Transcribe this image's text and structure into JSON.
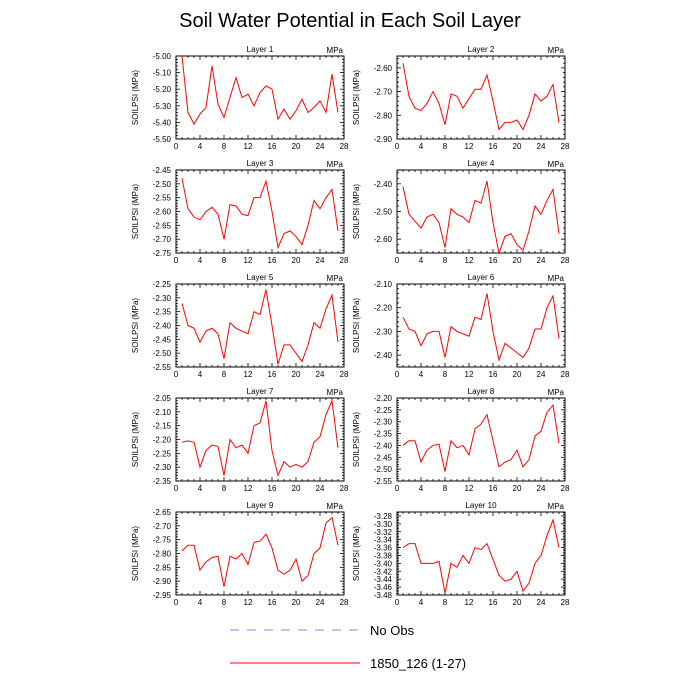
{
  "title": "Soil Water Potential in Each Soil Layer",
  "legend": [
    {
      "label": "No Obs",
      "color": "#8a8ad8",
      "style": "dashed"
    },
    {
      "label": "1850_126 (1-27)",
      "color": "#ff0000",
      "style": "solid"
    }
  ],
  "chart_data": [
    {
      "type": "line",
      "title": "Layer 1",
      "units": "MPa",
      "ylabel": "SOILPSI  (MPa)",
      "xlim": [
        0,
        28
      ],
      "xticks": [
        0,
        4,
        8,
        12,
        16,
        20,
        24,
        28
      ],
      "ylim": [
        -5.5,
        -5.0
      ],
      "yticks": [
        -5.5,
        -5.4,
        -5.3,
        -5.2,
        -5.1,
        -5.0
      ],
      "ydec": 2,
      "x": [
        1,
        2,
        3,
        4,
        5,
        6,
        7,
        8,
        9,
        10,
        11,
        12,
        13,
        14,
        15,
        16,
        17,
        18,
        19,
        20,
        21,
        22,
        23,
        24,
        25,
        26,
        27
      ],
      "series": [
        {
          "name": "1850_126 (1-27)",
          "values": [
            -5.0,
            -5.34,
            -5.41,
            -5.35,
            -5.31,
            -5.06,
            -5.29,
            -5.37,
            -5.25,
            -5.13,
            -5.25,
            -5.23,
            -5.3,
            -5.22,
            -5.18,
            -5.2,
            -5.38,
            -5.32,
            -5.38,
            -5.33,
            -5.26,
            -5.34,
            -5.31,
            -5.27,
            -5.34,
            -5.11,
            -5.34
          ]
        }
      ]
    },
    {
      "type": "line",
      "title": "Layer 2",
      "units": "MPa",
      "ylabel": "SOILPSI  (MPa)",
      "xlim": [
        0,
        28
      ],
      "xticks": [
        0,
        4,
        8,
        12,
        16,
        20,
        24,
        28
      ],
      "ylim": [
        -2.9,
        -2.55
      ],
      "yticks": [
        -2.9,
        -2.8,
        -2.7,
        -2.6
      ],
      "ydec": 2,
      "x": [
        1,
        2,
        3,
        4,
        5,
        6,
        7,
        8,
        9,
        10,
        11,
        12,
        13,
        14,
        15,
        16,
        17,
        18,
        19,
        20,
        21,
        22,
        23,
        24,
        25,
        26,
        27
      ],
      "series": [
        {
          "name": "1850_126 (1-27)",
          "values": [
            -2.58,
            -2.72,
            -2.77,
            -2.78,
            -2.75,
            -2.7,
            -2.75,
            -2.84,
            -2.71,
            -2.72,
            -2.77,
            -2.73,
            -2.69,
            -2.69,
            -2.63,
            -2.74,
            -2.86,
            -2.83,
            -2.83,
            -2.82,
            -2.86,
            -2.8,
            -2.71,
            -2.74,
            -2.72,
            -2.67,
            -2.83
          ]
        }
      ]
    },
    {
      "type": "line",
      "title": "Layer 3",
      "units": "MPa",
      "ylabel": "SOILPSI  (MPa)",
      "xlim": [
        0,
        28
      ],
      "xticks": [
        0,
        4,
        8,
        12,
        16,
        20,
        24,
        28
      ],
      "ylim": [
        -2.75,
        -2.45
      ],
      "yticks": [
        -2.75,
        -2.7,
        -2.65,
        -2.6,
        -2.55,
        -2.5,
        -2.45
      ],
      "ydec": 2,
      "x": [
        1,
        2,
        3,
        4,
        5,
        6,
        7,
        8,
        9,
        10,
        11,
        12,
        13,
        14,
        15,
        16,
        17,
        18,
        19,
        20,
        21,
        22,
        23,
        24,
        25,
        26,
        27
      ],
      "series": [
        {
          "name": "1850_126 (1-27)",
          "values": [
            -2.48,
            -2.59,
            -2.62,
            -2.63,
            -2.6,
            -2.585,
            -2.61,
            -2.7,
            -2.575,
            -2.58,
            -2.61,
            -2.615,
            -2.55,
            -2.55,
            -2.49,
            -2.6,
            -2.73,
            -2.68,
            -2.67,
            -2.69,
            -2.72,
            -2.65,
            -2.56,
            -2.59,
            -2.55,
            -2.52,
            -2.67
          ]
        }
      ]
    },
    {
      "type": "line",
      "title": "Layer 4",
      "units": "MPa",
      "ylabel": "SOILPSI  (MPa)",
      "xlim": [
        0,
        28
      ],
      "xticks": [
        0,
        4,
        8,
        12,
        16,
        20,
        24,
        28
      ],
      "ylim": [
        -2.65,
        -2.35
      ],
      "yticks": [
        -2.6,
        -2.5,
        -2.4
      ],
      "ydec": 2,
      "x": [
        1,
        2,
        3,
        4,
        5,
        6,
        7,
        8,
        9,
        10,
        11,
        12,
        13,
        14,
        15,
        16,
        17,
        18,
        19,
        20,
        21,
        22,
        23,
        24,
        25,
        26,
        27
      ],
      "series": [
        {
          "name": "1850_126 (1-27)",
          "values": [
            -2.41,
            -2.51,
            -2.535,
            -2.56,
            -2.52,
            -2.51,
            -2.54,
            -2.63,
            -2.49,
            -2.51,
            -2.52,
            -2.54,
            -2.46,
            -2.47,
            -2.39,
            -2.54,
            -2.65,
            -2.59,
            -2.58,
            -2.62,
            -2.64,
            -2.57,
            -2.48,
            -2.51,
            -2.46,
            -2.42,
            -2.58
          ]
        }
      ]
    },
    {
      "type": "line",
      "title": "Layer 5",
      "units": "MPa",
      "ylabel": "SOILPSI  (MPa)",
      "xlim": [
        0,
        28
      ],
      "xticks": [
        0,
        4,
        8,
        12,
        16,
        20,
        24,
        28
      ],
      "ylim": [
        -2.55,
        -2.25
      ],
      "yticks": [
        -2.55,
        -2.5,
        -2.45,
        -2.4,
        -2.35,
        -2.3,
        -2.25
      ],
      "ydec": 2,
      "x": [
        1,
        2,
        3,
        4,
        5,
        6,
        7,
        8,
        9,
        10,
        11,
        12,
        13,
        14,
        15,
        16,
        17,
        18,
        19,
        20,
        21,
        22,
        23,
        24,
        25,
        26,
        27
      ],
      "series": [
        {
          "name": "1850_126 (1-27)",
          "values": [
            -2.32,
            -2.4,
            -2.41,
            -2.46,
            -2.42,
            -2.41,
            -2.43,
            -2.52,
            -2.39,
            -2.41,
            -2.42,
            -2.43,
            -2.35,
            -2.36,
            -2.27,
            -2.4,
            -2.54,
            -2.47,
            -2.47,
            -2.5,
            -2.53,
            -2.47,
            -2.39,
            -2.41,
            -2.34,
            -2.29,
            -2.46
          ]
        }
      ]
    },
    {
      "type": "line",
      "title": "Layer 6",
      "units": "MPa",
      "ylabel": "SOILPSI  (MPa)",
      "xlim": [
        0,
        28
      ],
      "xticks": [
        0,
        4,
        8,
        12,
        16,
        20,
        24,
        28
      ],
      "ylim": [
        -2.45,
        -2.1
      ],
      "yticks": [
        -2.4,
        -2.3,
        -2.2,
        -2.1
      ],
      "ydec": 2,
      "x": [
        1,
        2,
        3,
        4,
        5,
        6,
        7,
        8,
        9,
        10,
        11,
        12,
        13,
        14,
        15,
        16,
        17,
        18,
        19,
        20,
        21,
        22,
        23,
        24,
        25,
        26,
        27
      ],
      "series": [
        {
          "name": "1850_126 (1-27)",
          "values": [
            -2.24,
            -2.29,
            -2.3,
            -2.36,
            -2.31,
            -2.3,
            -2.3,
            -2.41,
            -2.28,
            -2.3,
            -2.31,
            -2.32,
            -2.24,
            -2.25,
            -2.14,
            -2.3,
            -2.42,
            -2.35,
            -2.37,
            -2.39,
            -2.41,
            -2.37,
            -2.29,
            -2.29,
            -2.2,
            -2.15,
            -2.33
          ]
        }
      ]
    },
    {
      "type": "line",
      "title": "Layer 7",
      "units": "MPa",
      "ylabel": "SOILPSI  (MPa)",
      "xlim": [
        0,
        28
      ],
      "xticks": [
        0,
        4,
        8,
        12,
        16,
        20,
        24,
        28
      ],
      "ylim": [
        -2.35,
        -2.05
      ],
      "yticks": [
        -2.35,
        -2.3,
        -2.25,
        -2.2,
        -2.15,
        -2.1,
        -2.05
      ],
      "ydec": 2,
      "x": [
        1,
        2,
        3,
        4,
        5,
        6,
        7,
        8,
        9,
        10,
        11,
        12,
        13,
        14,
        15,
        16,
        17,
        18,
        19,
        20,
        21,
        22,
        23,
        24,
        25,
        26,
        27
      ],
      "series": [
        {
          "name": "1850_126 (1-27)",
          "values": [
            -2.21,
            -2.205,
            -2.21,
            -2.3,
            -2.24,
            -2.22,
            -2.225,
            -2.33,
            -2.2,
            -2.23,
            -2.22,
            -2.25,
            -2.15,
            -2.14,
            -2.06,
            -2.24,
            -2.33,
            -2.28,
            -2.3,
            -2.29,
            -2.3,
            -2.28,
            -2.21,
            -2.19,
            -2.11,
            -2.06,
            -2.23
          ]
        }
      ]
    },
    {
      "type": "line",
      "title": "Layer 8",
      "units": "MPa",
      "ylabel": "SOILPSI  (MPa)",
      "xlim": [
        0,
        28
      ],
      "xticks": [
        0,
        4,
        8,
        12,
        16,
        20,
        24,
        28
      ],
      "ylim": [
        -2.55,
        -2.2
      ],
      "yticks": [
        -2.55,
        -2.5,
        -2.45,
        -2.4,
        -2.35,
        -2.3,
        -2.25,
        -2.2
      ],
      "ydec": 2,
      "x": [
        1,
        2,
        3,
        4,
        5,
        6,
        7,
        8,
        9,
        10,
        11,
        12,
        13,
        14,
        15,
        16,
        17,
        18,
        19,
        20,
        21,
        22,
        23,
        24,
        25,
        26,
        27
      ],
      "series": [
        {
          "name": "1850_126 (1-27)",
          "values": [
            -2.4,
            -2.38,
            -2.38,
            -2.47,
            -2.42,
            -2.4,
            -2.395,
            -2.51,
            -2.38,
            -2.41,
            -2.4,
            -2.44,
            -2.33,
            -2.31,
            -2.27,
            -2.38,
            -2.49,
            -2.47,
            -2.46,
            -2.42,
            -2.49,
            -2.46,
            -2.36,
            -2.34,
            -2.26,
            -2.23,
            -2.39
          ]
        }
      ]
    },
    {
      "type": "line",
      "title": "Layer 9",
      "units": "MPa",
      "ylabel": "SOILPSI  (MPa)",
      "xlim": [
        0,
        28
      ],
      "xticks": [
        0,
        4,
        8,
        12,
        16,
        20,
        24,
        28
      ],
      "ylim": [
        -2.95,
        -2.65
      ],
      "yticks": [
        -2.95,
        -2.9,
        -2.85,
        -2.8,
        -2.75,
        -2.7,
        -2.65
      ],
      "ydec": 2,
      "x": [
        1,
        2,
        3,
        4,
        5,
        6,
        7,
        8,
        9,
        10,
        11,
        12,
        13,
        14,
        15,
        16,
        17,
        18,
        19,
        20,
        21,
        22,
        23,
        24,
        25,
        26,
        27
      ],
      "series": [
        {
          "name": "1850_126 (1-27)",
          "values": [
            -2.79,
            -2.77,
            -2.77,
            -2.86,
            -2.83,
            -2.815,
            -2.81,
            -2.92,
            -2.81,
            -2.82,
            -2.8,
            -2.84,
            -2.76,
            -2.755,
            -2.73,
            -2.78,
            -2.86,
            -2.875,
            -2.86,
            -2.82,
            -2.9,
            -2.88,
            -2.8,
            -2.78,
            -2.69,
            -2.67,
            -2.77
          ]
        }
      ]
    },
    {
      "type": "line",
      "title": "Layer 10",
      "units": "MPa",
      "ylabel": "SOILPSI  (MPa)",
      "xlim": [
        0,
        28
      ],
      "xticks": [
        0,
        4,
        8,
        12,
        16,
        20,
        24,
        28
      ],
      "ylim": [
        -3.48,
        -3.27
      ],
      "yticks": [
        -3.48,
        -3.46,
        -3.44,
        -3.42,
        -3.4,
        -3.38,
        -3.36,
        -3.34,
        -3.32,
        -3.3,
        -3.28
      ],
      "ydec": 2,
      "x": [
        1,
        2,
        3,
        4,
        5,
        6,
        7,
        8,
        9,
        10,
        11,
        12,
        13,
        14,
        15,
        16,
        17,
        18,
        19,
        20,
        21,
        22,
        23,
        24,
        25,
        26,
        27
      ],
      "series": [
        {
          "name": "1850_126 (1-27)",
          "values": [
            -3.36,
            -3.35,
            -3.35,
            -3.4,
            -3.4,
            -3.4,
            -3.395,
            -3.475,
            -3.4,
            -3.41,
            -3.38,
            -3.4,
            -3.36,
            -3.365,
            -3.35,
            -3.39,
            -3.43,
            -3.445,
            -3.44,
            -3.42,
            -3.47,
            -3.45,
            -3.4,
            -3.38,
            -3.33,
            -3.29,
            -3.36
          ]
        }
      ]
    }
  ]
}
